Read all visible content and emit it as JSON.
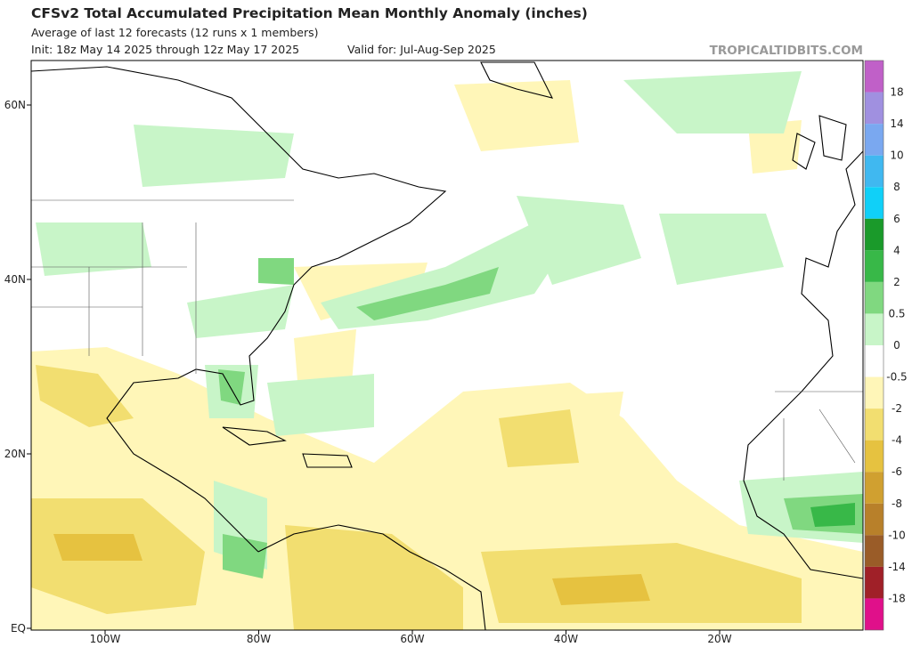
{
  "header": {
    "title": "CFSv2 Total Accumulated Precipitation Mean Monthly Anomaly (inches)",
    "subtitle": "Average of last 12 forecasts (12 runs x 1 members)",
    "init": "Init: 18z May 14 2025 through 12z May 17 2025",
    "valid": "Valid for: Jul-Aug-Sep 2025",
    "watermark": "TROPICALTIDBITS.COM"
  },
  "map": {
    "lat_labels": [
      "60N",
      "40N",
      "20N",
      "EQ"
    ],
    "lon_labels": [
      "100W",
      "80W",
      "60W",
      "40W",
      "20W"
    ]
  },
  "colorbar": {
    "swatches": [
      "#c060c8",
      "#a090e0",
      "#7aa8f0",
      "#40b8f0",
      "#10d0f8",
      "#1a9a2a",
      "#38b848",
      "#80d880",
      "#c8f5c8",
      "#ffffff",
      "#fff6b8",
      "#f2de70",
      "#e6c240",
      "#d0a030",
      "#b8802a",
      "#9a5c28",
      "#a02028",
      "#e0108a"
    ],
    "labels": [
      "18",
      "14",
      "10",
      "8",
      "6",
      "4",
      "2",
      "0.5",
      "0",
      "-0.5",
      "-2",
      "-4",
      "-6",
      "-8",
      "-10",
      "-14",
      "-18"
    ]
  }
}
